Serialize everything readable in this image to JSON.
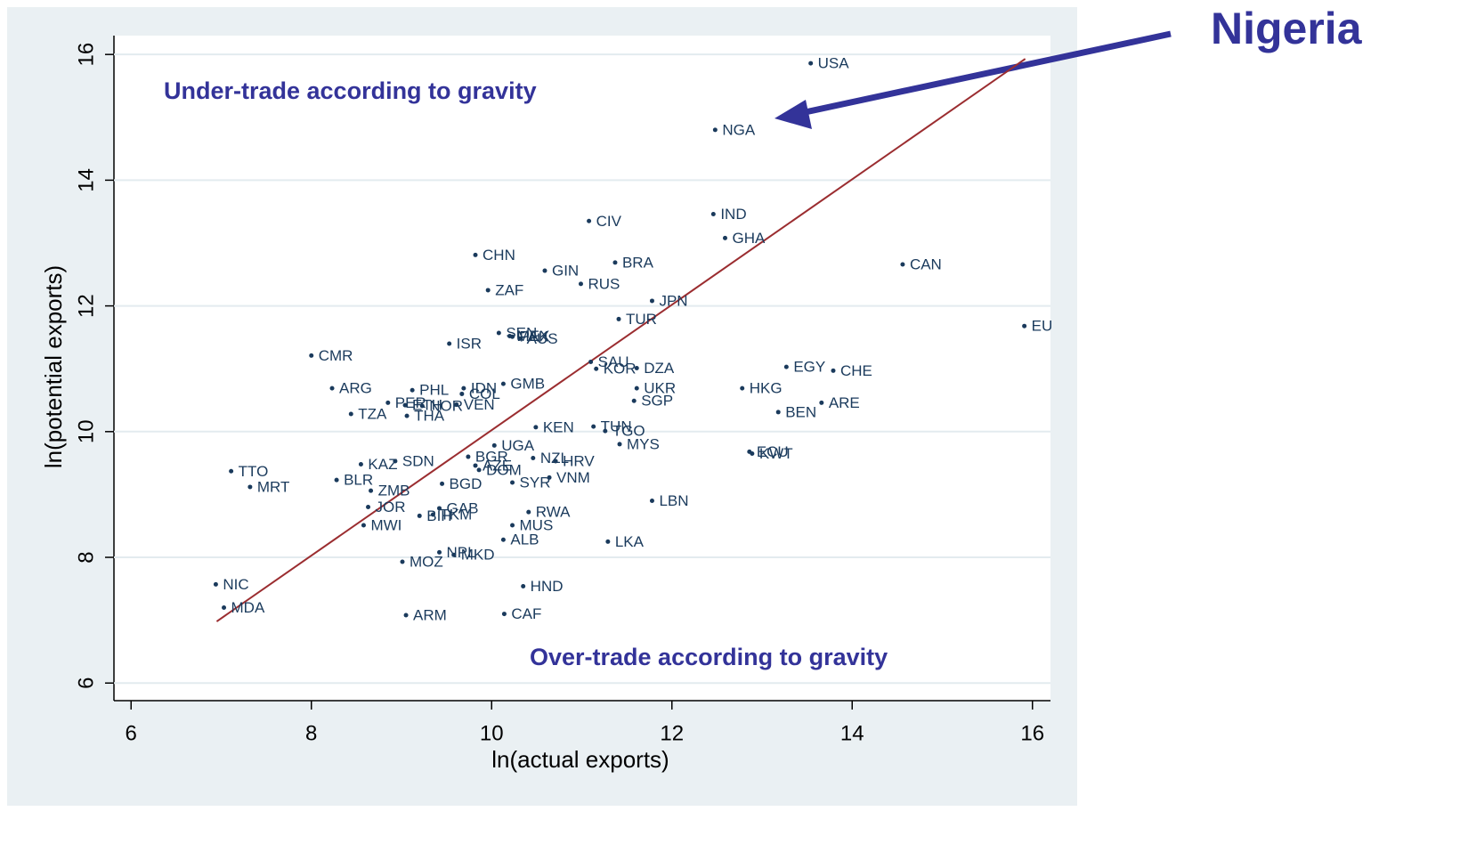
{
  "chart_data": {
    "type": "scatter",
    "x_label": "ln(actual exports)",
    "y_label": "ln(potential exports)",
    "annotations": [
      "Under-trade according to gravity",
      "Over-trade according to gravity",
      "Nigeria"
    ],
    "color": "#1a3a5c",
    "labels": [
      "USA",
      "NGA",
      "IND",
      "GHA",
      "CIV",
      "CHN",
      "BRA",
      "CAN",
      "GIN",
      "RUS",
      "ZAF",
      "JPN",
      "TUR",
      "EU",
      "SEN",
      "MEX",
      "PAK",
      "AUS",
      "ISR",
      "CMR",
      "SAU",
      "KOR",
      "DZA",
      "EGY",
      "CHE",
      "GMB",
      "ARG",
      "HKG",
      "UKR",
      "PHL",
      "IDN",
      "COL",
      "SGP",
      "ARE",
      "PER",
      "ETH",
      "NOR",
      "VEN",
      "TZA",
      "THA",
      "BEN",
      "KEN",
      "TUN",
      "TGO",
      "MYS",
      "UGA",
      "ECU",
      "KWT",
      "TTO",
      "KAZ",
      "SDN",
      "BGR",
      "NZL",
      "HRV",
      "AZE",
      "DOM",
      "VNM",
      "BLR",
      "MRT",
      "BGD",
      "SYR",
      "ZMB",
      "LBN",
      "JOR",
      "GAB",
      "RWA",
      "BIH",
      "TKM",
      "MUS",
      "MWI",
      "ALB",
      "LKA",
      "NPL",
      "MKD",
      "MOZ",
      "NIC",
      "HND",
      "MDA",
      "CAF",
      "ARM"
    ],
    "x": [
      13.54,
      12.48,
      12.46,
      12.59,
      11.08,
      9.82,
      11.37,
      14.56,
      10.59,
      10.99,
      9.96,
      11.78,
      11.41,
      15.91,
      10.08,
      10.2,
      10.23,
      10.31,
      9.53,
      8.0,
      11.1,
      11.16,
      11.61,
      13.27,
      13.79,
      10.13,
      8.23,
      12.78,
      11.61,
      9.12,
      9.69,
      9.67,
      11.58,
      13.66,
      8.85,
      9.04,
      9.23,
      9.61,
      8.44,
      9.06,
      13.18,
      10.49,
      11.13,
      11.26,
      11.42,
      10.03,
      12.86,
      12.89,
      7.11,
      8.55,
      8.93,
      9.74,
      10.46,
      10.71,
      9.82,
      9.86,
      10.64,
      8.28,
      7.32,
      9.45,
      10.23,
      8.66,
      11.78,
      8.63,
      9.42,
      10.41,
      9.2,
      9.35,
      10.23,
      8.58,
      10.13,
      11.29,
      9.42,
      9.58,
      9.01,
      6.94,
      10.35,
      7.03,
      10.14,
      9.05
    ],
    "y": [
      15.86,
      14.8,
      13.46,
      13.08,
      13.35,
      12.81,
      12.69,
      12.66,
      12.56,
      12.35,
      12.25,
      12.08,
      11.79,
      11.68,
      11.57,
      11.52,
      11.51,
      11.48,
      11.4,
      11.21,
      11.11,
      11.0,
      11.01,
      11.03,
      10.97,
      10.76,
      10.69,
      10.69,
      10.69,
      10.66,
      10.69,
      10.6,
      10.49,
      10.46,
      10.46,
      10.42,
      10.41,
      10.43,
      10.28,
      10.25,
      10.31,
      10.07,
      10.08,
      10.01,
      9.8,
      9.78,
      9.68,
      9.65,
      9.37,
      9.48,
      9.53,
      9.6,
      9.58,
      9.53,
      9.46,
      9.39,
      9.27,
      9.23,
      9.12,
      9.17,
      9.19,
      9.06,
      8.9,
      8.8,
      8.78,
      8.72,
      8.66,
      8.68,
      8.51,
      8.51,
      8.28,
      8.25,
      8.08,
      8.04,
      7.93,
      7.57,
      7.54,
      7.2,
      7.1,
      7.08
    ],
    "fit_line": {
      "x": [
        6.95,
        15.92
      ],
      "y": [
        6.98,
        15.93
      ],
      "color": "#9b2d30"
    },
    "xlim": [
      5.81,
      16.2
    ],
    "ylim": [
      5.72,
      16.3
    ],
    "xticks": [
      6,
      8,
      10,
      12,
      14,
      16
    ],
    "yticks": [
      6,
      8,
      10,
      12,
      14,
      16
    ],
    "grid": true
  }
}
